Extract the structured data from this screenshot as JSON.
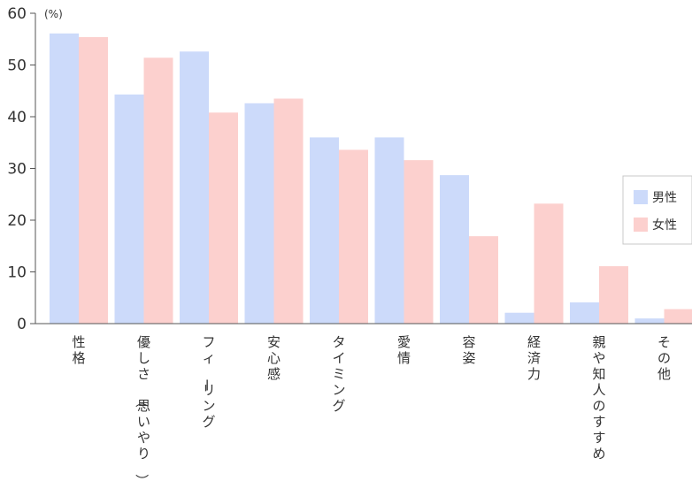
{
  "chart_data": {
    "type": "bar",
    "title": "",
    "xlabel": "",
    "ylabel": "",
    "unit": "(%)",
    "ylim": [
      0,
      60
    ],
    "yticks": [
      0,
      10,
      20,
      30,
      40,
      50,
      60
    ],
    "grid": false,
    "legend_position": "right",
    "categories": [
      "性格",
      "優しさ（思いやり）",
      "フィーリング",
      "安心感",
      "タイミング",
      "愛情",
      "容姿",
      "経済力",
      "親や知人のすすめ",
      "その他"
    ],
    "series": [
      {
        "name": "男性",
        "color": "#ccdafa",
        "values": [
          56.1,
          44.3,
          52.6,
          42.6,
          36.0,
          36.0,
          28.7,
          2.1,
          4.1,
          1.0
        ]
      },
      {
        "name": "女性",
        "color": "#fcd0ce",
        "values": [
          55.4,
          51.4,
          40.8,
          43.5,
          33.6,
          31.6,
          16.9,
          23.2,
          11.1,
          2.8
        ]
      }
    ]
  },
  "colors": {
    "axis": "#555555",
    "text": "#333333",
    "legend_border": "#c8c8c8"
  }
}
